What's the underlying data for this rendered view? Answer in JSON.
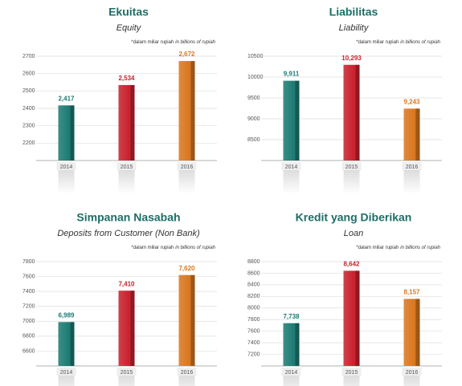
{
  "chart_data": [
    {
      "type": "bar",
      "title": "Ekuitas",
      "subtitle": "Equity",
      "note": "*dalam miliar rupiah",
      "note_italic": "in billions of rupiah",
      "categories": [
        "2014",
        "2015",
        "2016"
      ],
      "values": [
        2417,
        2534,
        2672
      ],
      "value_labels": [
        "2,417",
        "2,534",
        "2,672"
      ],
      "colors": [
        "#1a7b73",
        "#c8202c",
        "#d9761e"
      ],
      "ylim": [
        2100,
        2700
      ],
      "yticks": [
        2200,
        2300,
        2400,
        2500,
        2600,
        2700
      ],
      "grid": true
    },
    {
      "type": "bar",
      "title": "Liabilitas",
      "subtitle": "Liability",
      "note": "*dalam miliar rupiah",
      "note_italic": "in billions of rupiah",
      "categories": [
        "2014",
        "2015",
        "2016"
      ],
      "values": [
        9911,
        10293,
        9243
      ],
      "value_labels": [
        "9,911",
        "10,293",
        "9,243"
      ],
      "colors": [
        "#1a7b73",
        "#c8202c",
        "#d9761e"
      ],
      "ylim": [
        8000,
        10500
      ],
      "yticks": [
        8500,
        9000,
        9500,
        10000,
        10500
      ],
      "grid": true
    },
    {
      "type": "bar",
      "title": "Simpanan Nasabah",
      "subtitle": "Deposits from Customer (Non Bank)",
      "note": "*dalam miliar rupiah",
      "note_italic": "in billions of rupiah",
      "categories": [
        "2014",
        "2015",
        "2016"
      ],
      "values": [
        6989,
        7410,
        7620
      ],
      "value_labels": [
        "6,989",
        "7,410",
        "7,620"
      ],
      "colors": [
        "#1a7b73",
        "#c8202c",
        "#d9761e"
      ],
      "ylim": [
        6400,
        7800
      ],
      "yticks": [
        6600,
        6800,
        7000,
        7200,
        7400,
        7600,
        7800
      ],
      "grid": true
    },
    {
      "type": "bar",
      "title": "Kredit yang Diberikan",
      "subtitle": "Loan",
      "note": "*dalam miliar rupiah",
      "note_italic": "in billions of rupiah",
      "categories": [
        "2014",
        "2015",
        "2016"
      ],
      "values": [
        7738,
        8642,
        8157
      ],
      "value_labels": [
        "7,738",
        "8,642",
        "8,157"
      ],
      "colors": [
        "#1a7b73",
        "#c8202c",
        "#d9761e"
      ],
      "ylim": [
        7000,
        8800
      ],
      "yticks": [
        7200,
        7400,
        7600,
        7800,
        8000,
        8200,
        8400,
        8600,
        8800
      ],
      "grid": true
    }
  ]
}
